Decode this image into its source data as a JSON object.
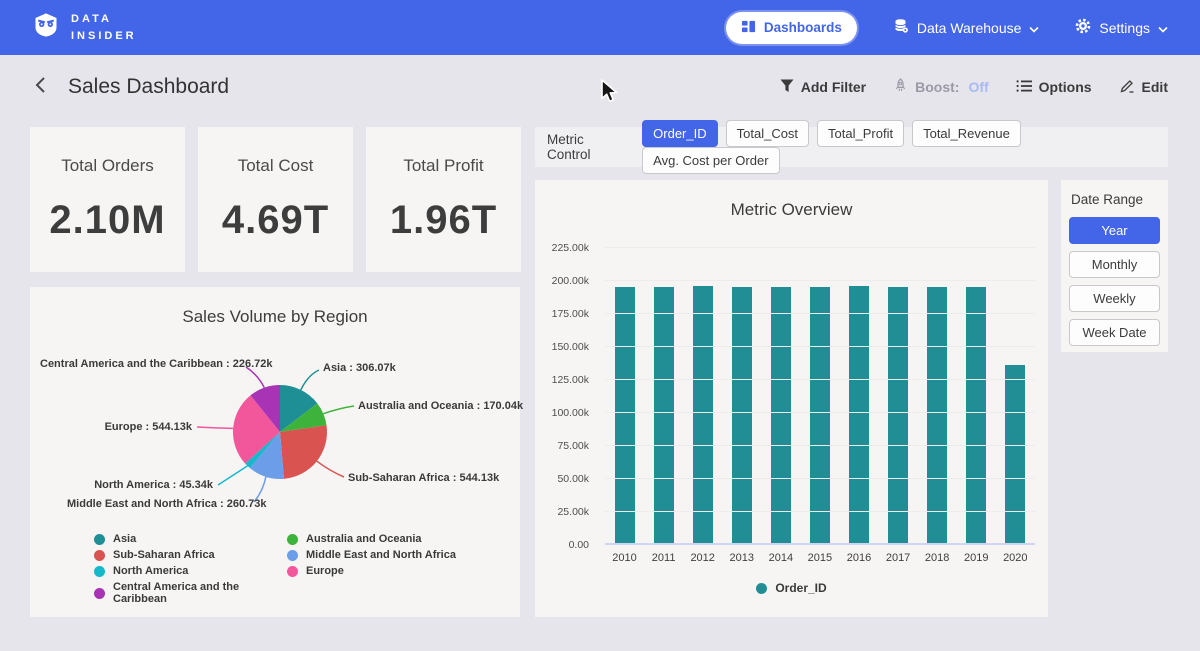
{
  "nav": {
    "brand_line1": "DATA",
    "brand_line2": "INSIDER",
    "dashboards_label": "Dashboards",
    "data_warehouse_label": "Data Warehouse",
    "settings_label": "Settings"
  },
  "header": {
    "title": "Sales Dashboard",
    "add_filter_label": "Add Filter",
    "boost_label": "Boost:",
    "boost_value": "Off",
    "options_label": "Options",
    "edit_label": "Edit"
  },
  "kpis": [
    {
      "label": "Total Orders",
      "value": "2.10M"
    },
    {
      "label": "Total Cost",
      "value": "4.69T"
    },
    {
      "label": "Total Profit",
      "value": "1.96T"
    }
  ],
  "metric_control": {
    "label": "Metric Control",
    "buttons": [
      {
        "label": "Order_ID",
        "active": true
      },
      {
        "label": "Total_Cost",
        "active": false
      },
      {
        "label": "Total_Profit",
        "active": false
      },
      {
        "label": "Total_Revenue",
        "active": false
      },
      {
        "label": "Avg. Cost per Order",
        "active": false
      }
    ]
  },
  "date_range": {
    "label": "Date Range",
    "buttons": [
      {
        "label": "Year",
        "active": true
      },
      {
        "label": "Monthly",
        "active": false
      },
      {
        "label": "Weekly",
        "active": false
      },
      {
        "label": "Week Date",
        "active": false
      }
    ]
  },
  "chart_data": [
    {
      "type": "bar",
      "title": "Metric Overview",
      "categories": [
        "2010",
        "2011",
        "2012",
        "2013",
        "2014",
        "2015",
        "2016",
        "2017",
        "2018",
        "2019",
        "2020"
      ],
      "series": [
        {
          "name": "Order_ID",
          "values": [
            195600,
            195500,
            196300,
            195700,
            195500,
            195600,
            196300,
            195800,
            195600,
            195700,
            136400
          ]
        }
      ],
      "xlabel": "",
      "ylabel": "",
      "ylim": [
        0,
        225000
      ],
      "ytick_labels": [
        "0.00",
        "25.00k",
        "50.00k",
        "75.00k",
        "100.00k",
        "125.00k",
        "150.00k",
        "175.00k",
        "200.00k",
        "225.00k"
      ],
      "grid": true,
      "legend_position": "bottom",
      "bar_color": "#218e96"
    },
    {
      "type": "pie",
      "title": "Sales Volume by Region",
      "slices": [
        {
          "label": "Asia",
          "value": 306070,
          "display": "Asia : 306.07k",
          "color": "#1f8f96"
        },
        {
          "label": "Australia and Oceania",
          "value": 170040,
          "display": "Australia and Oceania : 170.04k",
          "color": "#3eb33b"
        },
        {
          "label": "Sub-Saharan Africa",
          "value": 544130,
          "display": "Sub-Saharan Africa : 544.13k",
          "color": "#d95350"
        },
        {
          "label": "Middle East and North Africa",
          "value": 260730,
          "display": "Middle East and North Africa : 260.73k",
          "color": "#6b9de8"
        },
        {
          "label": "North America",
          "value": 45340,
          "display": "North America : 45.34k",
          "color": "#16b8cc"
        },
        {
          "label": "Europe",
          "value": 544130,
          "display": "Europe : 544.13k",
          "color": "#f2579b"
        },
        {
          "label": "Central America and the Caribbean",
          "value": 226720,
          "display": "Central America and the Caribbean : 226.72k",
          "color": "#a834b5"
        }
      ],
      "legend_position": "bottom"
    }
  ],
  "colors": {
    "nav_blue": "#4365e8",
    "accent_blue": "#4365e8",
    "bar_teal": "#218e96",
    "boost_off": "#aab9f5"
  }
}
